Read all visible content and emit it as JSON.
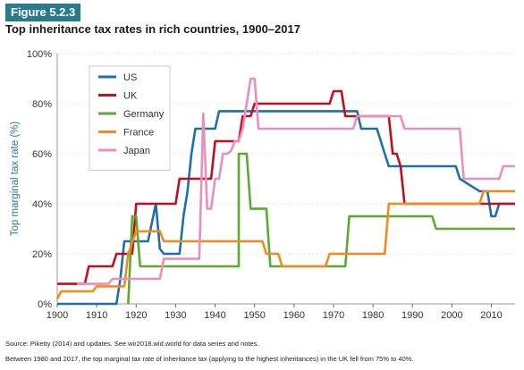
{
  "figure_label": "Figure 5.2.3",
  "title": "Top inheritance tax rates in rich countries, 1900–2017",
  "source_note": "Source: Piketty (2014) and updates. See wir2018.wid.world for data series and notes.",
  "footnote": "Between 1980 and 2017, the top marginal tax rate of inheritance tax (applying to the highest inheritances) in the UK fell from 75% to 40%.",
  "chart_data": {
    "type": "line",
    "ylabel": "Top marginal tax rate (%)",
    "xlabel": "",
    "xlim": [
      1900,
      2016
    ],
    "ylim": [
      0,
      100
    ],
    "x_ticks": [
      1900,
      1910,
      1920,
      1930,
      1940,
      1950,
      1960,
      1970,
      1980,
      1990,
      2000,
      2010
    ],
    "y_ticks": [
      0,
      20,
      40,
      60,
      80,
      100
    ],
    "y_tick_labels": [
      "0%",
      "20%",
      "40%",
      "60%",
      "80%",
      "100%"
    ],
    "grid": "horizontal",
    "legend_position": "top-left",
    "series": [
      {
        "name": "US",
        "color": "#1f6fa8",
        "points": [
          [
            1900,
            0
          ],
          [
            1915,
            0
          ],
          [
            1916,
            10
          ],
          [
            1917,
            25
          ],
          [
            1923,
            25
          ],
          [
            1925,
            40
          ],
          [
            1926,
            22
          ],
          [
            1927,
            20
          ],
          [
            1931,
            20
          ],
          [
            1932,
            35
          ],
          [
            1933,
            45
          ],
          [
            1934,
            60
          ],
          [
            1935,
            70
          ],
          [
            1940,
            70
          ],
          [
            1941,
            77
          ],
          [
            1976,
            77
          ],
          [
            1977,
            70
          ],
          [
            1981,
            70
          ],
          [
            1982,
            65
          ],
          [
            1983,
            60
          ],
          [
            1984,
            55
          ],
          [
            2001,
            55
          ],
          [
            2002,
            50
          ],
          [
            2003,
            49
          ],
          [
            2004,
            48
          ],
          [
            2005,
            47
          ],
          [
            2006,
            46
          ],
          [
            2007,
            45
          ],
          [
            2009,
            45
          ],
          [
            2010,
            35
          ],
          [
            2011,
            35
          ],
          [
            2012,
            40
          ],
          [
            2016,
            40
          ]
        ]
      },
      {
        "name": "UK",
        "color": "#c00f1e",
        "points": [
          [
            1900,
            8
          ],
          [
            1907,
            8
          ],
          [
            1908,
            15
          ],
          [
            1914,
            15
          ],
          [
            1915,
            20
          ],
          [
            1919,
            20
          ],
          [
            1920,
            40
          ],
          [
            1930,
            40
          ],
          [
            1931,
            50
          ],
          [
            1939,
            50
          ],
          [
            1940,
            65
          ],
          [
            1946,
            65
          ],
          [
            1947,
            75
          ],
          [
            1949,
            75
          ],
          [
            1950,
            80
          ],
          [
            1969,
            80
          ],
          [
            1970,
            85
          ],
          [
            1972,
            85
          ],
          [
            1973,
            75
          ],
          [
            1984,
            75
          ],
          [
            1985,
            60
          ],
          [
            1986,
            60
          ],
          [
            1987,
            55
          ],
          [
            1988,
            40
          ],
          [
            2016,
            40
          ]
        ]
      },
      {
        "name": "Germany",
        "color": "#5aab2f",
        "points": [
          [
            1918,
            0
          ],
          [
            1919,
            35
          ],
          [
            1920,
            35
          ],
          [
            1921,
            15
          ],
          [
            1946,
            15
          ],
          [
            1946,
            60
          ],
          [
            1948,
            60
          ],
          [
            1949,
            38
          ],
          [
            1953,
            38
          ],
          [
            1954,
            15
          ],
          [
            1973,
            15
          ],
          [
            1974,
            35
          ],
          [
            1995,
            35
          ],
          [
            1996,
            30
          ],
          [
            2016,
            30
          ]
        ]
      },
      {
        "name": "France",
        "color": "#f08c1d",
        "points": [
          [
            1900,
            2
          ],
          [
            1901,
            5
          ],
          [
            1909,
            5
          ],
          [
            1910,
            7
          ],
          [
            1917,
            7
          ],
          [
            1918,
            20
          ],
          [
            1920,
            29
          ],
          [
            1926,
            29
          ],
          [
            1927,
            25
          ],
          [
            1952,
            25
          ],
          [
            1953,
            20
          ],
          [
            1956,
            20
          ],
          [
            1957,
            15
          ],
          [
            1968,
            15
          ],
          [
            1969,
            20
          ],
          [
            1983,
            20
          ],
          [
            1984,
            40
          ],
          [
            2007,
            40
          ],
          [
            2008,
            45
          ],
          [
            2016,
            45
          ]
        ]
      },
      {
        "name": "Japan",
        "color": "#e890bd",
        "points": [
          [
            1905,
            8
          ],
          [
            1913,
            8
          ],
          [
            1914,
            10
          ],
          [
            1926,
            10
          ],
          [
            1927,
            18
          ],
          [
            1936,
            18
          ],
          [
            1937,
            76
          ],
          [
            1938,
            38
          ],
          [
            1939,
            38
          ],
          [
            1940,
            50
          ],
          [
            1941,
            50
          ],
          [
            1942,
            60
          ],
          [
            1943,
            60
          ],
          [
            1944,
            61
          ],
          [
            1945,
            65
          ],
          [
            1946,
            65
          ],
          [
            1947,
            70
          ],
          [
            1948,
            80
          ],
          [
            1949,
            90
          ],
          [
            1950,
            90
          ],
          [
            1951,
            70
          ],
          [
            1975,
            70
          ],
          [
            1976,
            75
          ],
          [
            1987,
            75
          ],
          [
            1988,
            70
          ],
          [
            2002,
            70
          ],
          [
            2003,
            50
          ],
          [
            2012,
            50
          ],
          [
            2013,
            55
          ],
          [
            2016,
            55
          ]
        ]
      }
    ]
  }
}
